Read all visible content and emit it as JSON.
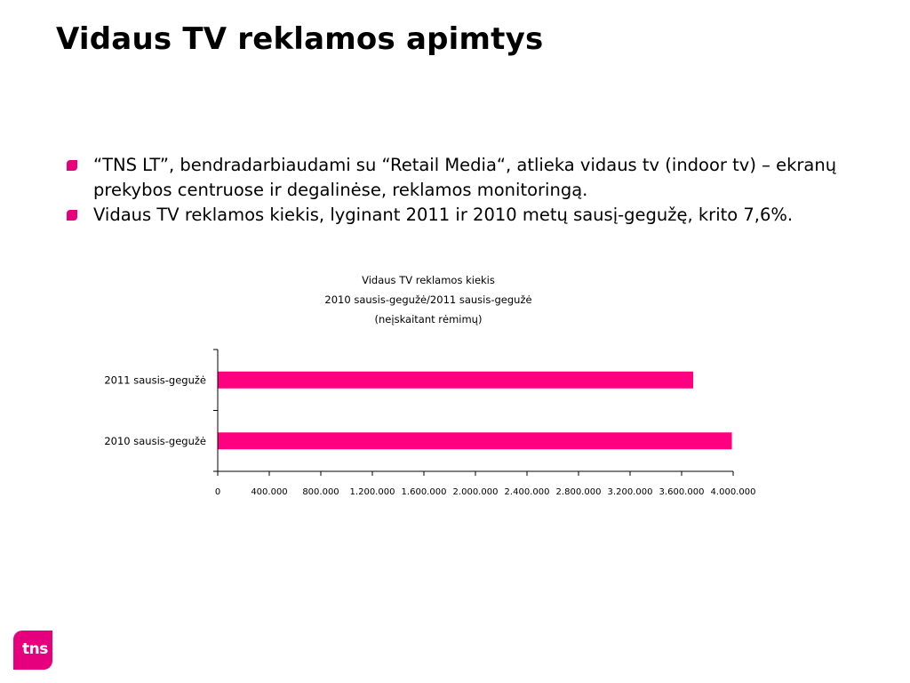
{
  "slide": {
    "title": "Vidaus TV reklamos apimtys",
    "bullets": [
      "“TNS LT”, bendradarbiaudami su “Retail Media“, atlieka vidaus tv (indoor tv) – ekranų prekybos centruose ir degalinėse, reklamos monitoringą.",
      "Vidaus TV reklamos kiekis, lyginant 2011 ir 2010 metų sausį-gegužę, krito 7,6%."
    ],
    "accent_color": "#e6007e",
    "logo_text": "tns"
  },
  "chart_data": {
    "type": "bar",
    "orientation": "horizontal",
    "title": [
      "Vidaus TV reklamos kiekis",
      "2010 sausis-gegužė/2011 sausis-gegužė",
      "(neįskaitant rėmimų)"
    ],
    "categories": [
      "2011 sausis-gegužė",
      "2010 sausis-gegužė"
    ],
    "values": [
      3690000,
      3990000
    ],
    "xlim": [
      0,
      4000000
    ],
    "x_ticks": [
      "0",
      "400.000",
      "800.000",
      "1.200.000",
      "1.600.000",
      "2.000.000",
      "2.400.000",
      "2.800.000",
      "3.200.000",
      "3.600.000",
      "4.000.000"
    ],
    "bar_color": "#ff0080",
    "grid": false,
    "legend": "none"
  }
}
